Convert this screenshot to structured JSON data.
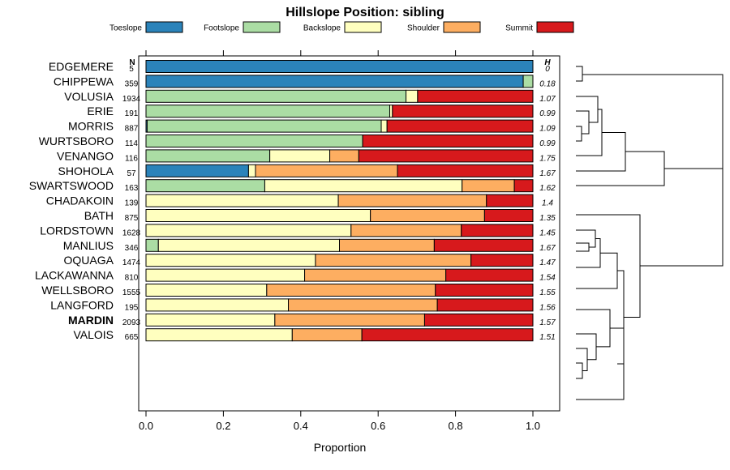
{
  "chart_data": {
    "type": "bar",
    "orientation": "horizontal",
    "stacked": true,
    "title": "Hillslope Position: sibling",
    "xlabel": "Proportion",
    "ylabel": "",
    "xlim": [
      0,
      1
    ],
    "x_ticks": [
      "0.0",
      "0.2",
      "0.4",
      "0.6",
      "0.8",
      "1.0"
    ],
    "n_header": "N",
    "h_header": "H",
    "highlight": "MARDIN",
    "series": [
      {
        "name": "Toeslope",
        "color": "#2b83ba"
      },
      {
        "name": "Footslope",
        "color": "#abdda4"
      },
      {
        "name": "Backslope",
        "color": "#ffffbf"
      },
      {
        "name": "Shoulder",
        "color": "#fdae61"
      },
      {
        "name": "Summit",
        "color": "#d7191c"
      }
    ],
    "rows": [
      {
        "label": "EDGEMERE",
        "n": "5",
        "h": "0",
        "values": [
          1.0,
          0,
          0,
          0,
          0
        ]
      },
      {
        "label": "CHIPPEWA",
        "n": "359",
        "h": "0.18",
        "values": [
          0.975,
          0.025,
          0,
          0,
          0
        ]
      },
      {
        "label": "VOLUSIA",
        "n": "1934",
        "h": "1.07",
        "values": [
          0,
          0.672,
          0.03,
          0,
          0.298
        ]
      },
      {
        "label": "ERIE",
        "n": "191",
        "h": "0.99",
        "values": [
          0,
          0.63,
          0.007,
          0,
          0.363
        ]
      },
      {
        "label": "MORRIS",
        "n": "887",
        "h": "1.09",
        "values": [
          0.003,
          0.605,
          0.015,
          0,
          0.377
        ]
      },
      {
        "label": "WURTSBORO",
        "n": "114",
        "h": "0.99",
        "values": [
          0,
          0.56,
          0,
          0,
          0.44
        ]
      },
      {
        "label": "VENANGO",
        "n": "116",
        "h": "1.75",
        "values": [
          0,
          0.32,
          0.155,
          0.075,
          0.45
        ]
      },
      {
        "label": "SHOHOLA",
        "n": "57",
        "h": "1.67",
        "values": [
          0.265,
          0,
          0.018,
          0.367,
          0.35
        ]
      },
      {
        "label": "SWARTSWOOD",
        "n": "163",
        "h": "1.62",
        "values": [
          0,
          0.307,
          0.51,
          0.135,
          0.048
        ]
      },
      {
        "label": "CHADAKOIN",
        "n": "139",
        "h": "1.4",
        "values": [
          0,
          0,
          0.497,
          0.383,
          0.12
        ]
      },
      {
        "label": "BATH",
        "n": "875",
        "h": "1.35",
        "values": [
          0,
          0,
          0.58,
          0.295,
          0.125
        ]
      },
      {
        "label": "LORDSTOWN",
        "n": "1628",
        "h": "1.45",
        "values": [
          0,
          0,
          0.53,
          0.285,
          0.185
        ]
      },
      {
        "label": "MANLIUS",
        "n": "346",
        "h": "1.67",
        "values": [
          0,
          0.032,
          0.468,
          0.245,
          0.255
        ]
      },
      {
        "label": "OQUAGA",
        "n": "1474",
        "h": "1.47",
        "values": [
          0,
          0,
          0.438,
          0.402,
          0.16
        ]
      },
      {
        "label": "LACKAWANNA",
        "n": "810",
        "h": "1.54",
        "values": [
          0,
          0,
          0.41,
          0.365,
          0.225
        ]
      },
      {
        "label": "WELLSBORO",
        "n": "1555",
        "h": "1.55",
        "values": [
          0,
          0,
          0.312,
          0.436,
          0.252
        ]
      },
      {
        "label": "LANGFORD",
        "n": "195",
        "h": "1.56",
        "values": [
          0,
          0,
          0.368,
          0.385,
          0.247
        ]
      },
      {
        "label": "MARDIN",
        "n": "2093",
        "h": "1.57",
        "values": [
          0,
          0,
          0.333,
          0.387,
          0.28
        ]
      },
      {
        "label": "VALOIS",
        "n": "665",
        "h": "1.51",
        "values": [
          0,
          0,
          0.378,
          0.18,
          0.442
        ]
      }
    ]
  }
}
